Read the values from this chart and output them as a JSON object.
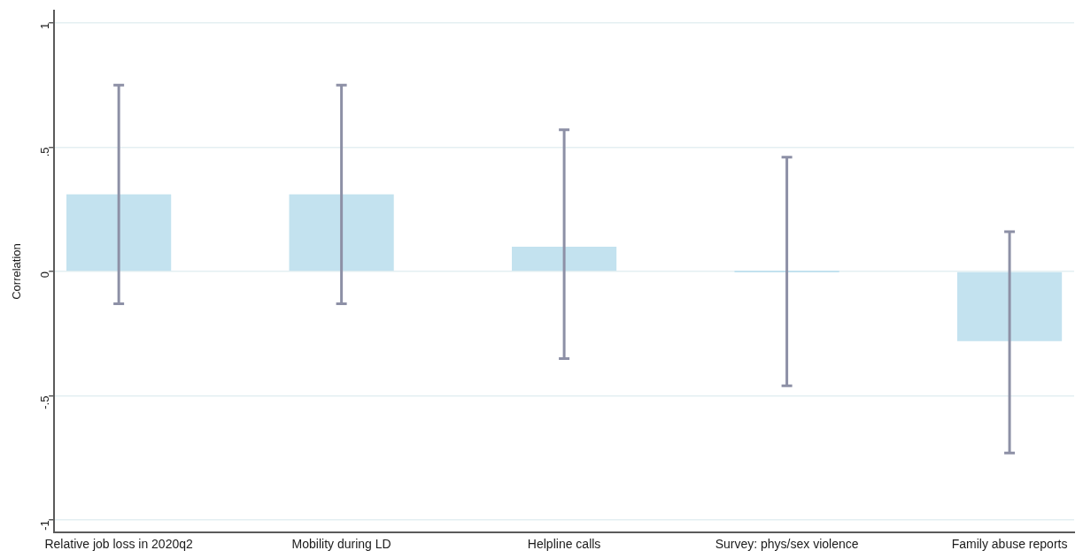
{
  "chart_data": {
    "type": "bar",
    "ylabel": "Correlation",
    "categories": [
      "Relative job loss in 2020q2",
      "Mobility during LD",
      "Helpline calls",
      "Survey: phys/sex violence",
      "Family abuse reports"
    ],
    "values": [
      0.31,
      0.31,
      0.1,
      0,
      -0.28
    ],
    "errors": [
      [
        -0.13,
        0.75
      ],
      [
        -0.13,
        0.75
      ],
      [
        -0.35,
        0.57
      ],
      [
        -0.46,
        0.46
      ],
      [
        -0.73,
        0.16
      ]
    ],
    "color": "#c3e2ef",
    "ylim": [
      -1.05,
      1.05
    ],
    "yticks": [
      1,
      {
        "value": 0.5,
        "label": ".5"
      },
      0,
      {
        "value": -0.5,
        "label": "-.5"
      },
      -1
    ],
    "grid": "y"
  }
}
